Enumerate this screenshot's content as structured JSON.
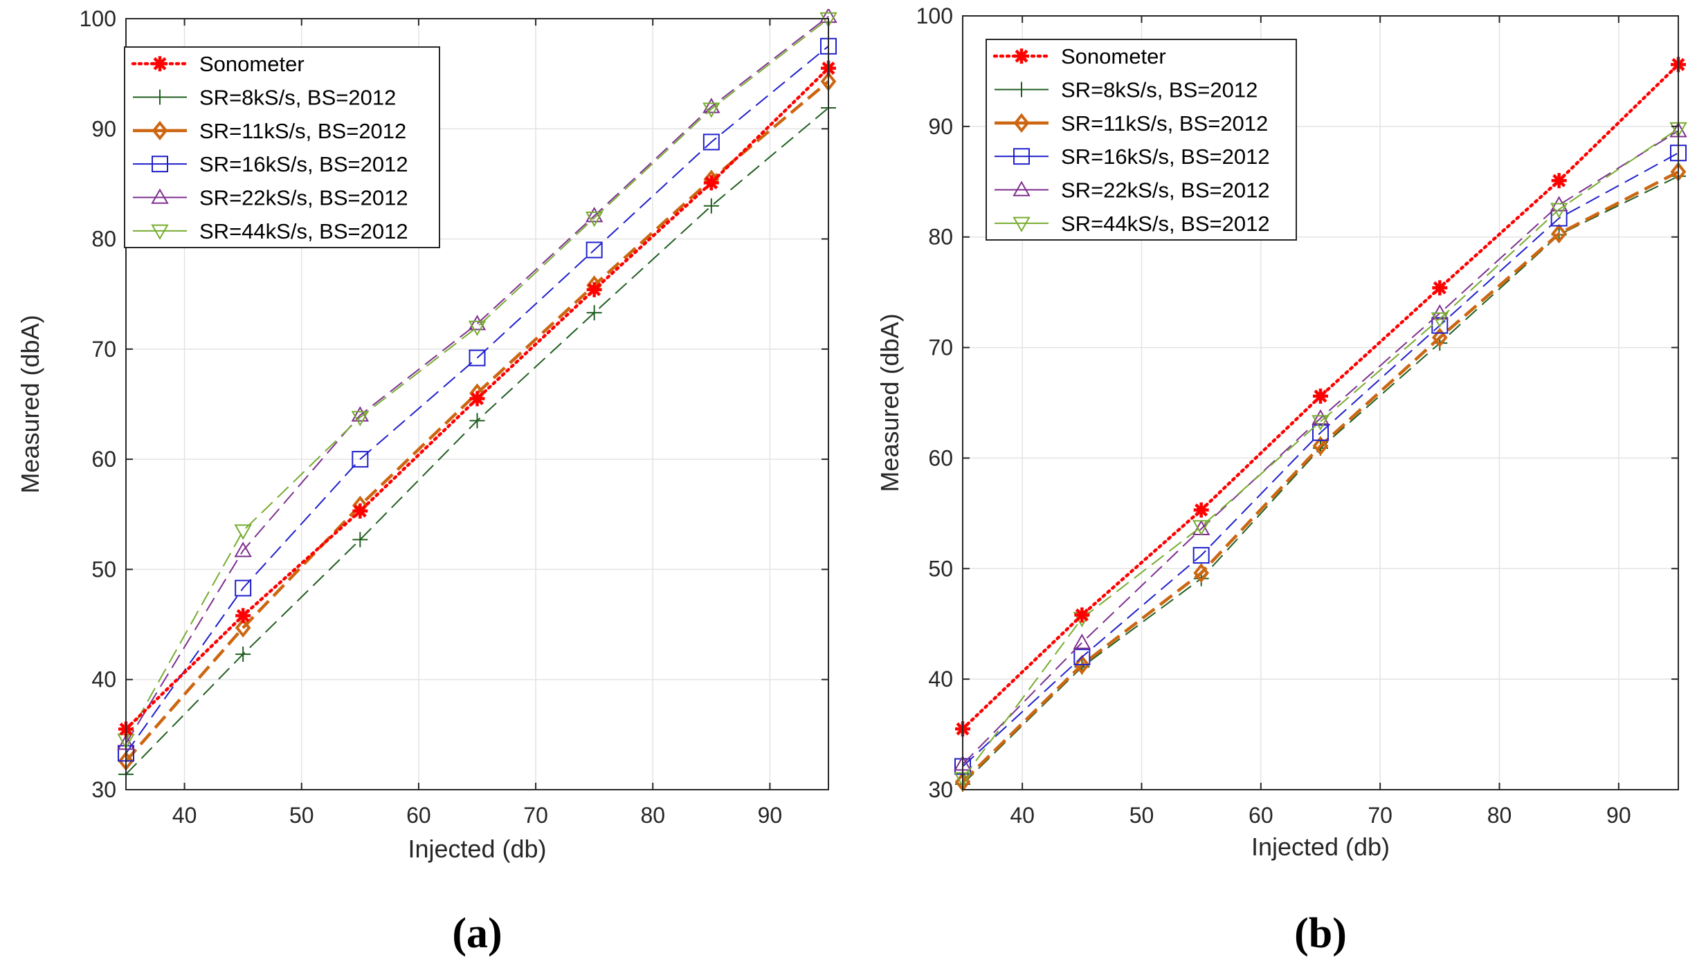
{
  "colors": {
    "sonometer": "#ff0000",
    "sr8": "#1f5e1f",
    "sr11": "#cc6611",
    "sr16": "#1f1fcc",
    "sr22": "#7e2f8e",
    "sr44": "#77ac30",
    "grid": "#e3e3e3",
    "axis": "#262626"
  },
  "chart_data": [
    {
      "type": "line",
      "panel_label": "(a)",
      "xlabel": "Injected (db)",
      "ylabel": "Measured (dbA)",
      "xlim": [
        35,
        95
      ],
      "ylim": [
        30,
        100
      ],
      "xticks": [
        40,
        50,
        60,
        70,
        80,
        90
      ],
      "yticks": [
        30,
        40,
        50,
        60,
        70,
        80,
        90,
        100
      ],
      "grid": true,
      "legend_position": "top-left",
      "x": [
        35,
        45,
        55,
        65,
        75,
        85,
        95
      ],
      "series": [
        {
          "name": "Sonometer",
          "key": "sonometer",
          "marker": "asterisk",
          "dash": "dotted",
          "values": [
            35.5,
            45.8,
            55.3,
            65.5,
            75.4,
            85.1,
            95.5
          ]
        },
        {
          "name": "SR=8kS/s,   BS=2012",
          "key": "sr8",
          "marker": "plus",
          "dash": "dashed",
          "values": [
            31.4,
            42.3,
            52.7,
            63.5,
            73.3,
            83.0,
            91.9
          ]
        },
        {
          "name": "SR=11kS/s, BS=2012",
          "key": "sr11",
          "marker": "diamond",
          "dash": "dashed-bold",
          "values": [
            32.6,
            44.7,
            55.8,
            66.0,
            75.8,
            85.4,
            94.3
          ]
        },
        {
          "name": "SR=16kS/s, BS=2012",
          "key": "sr16",
          "marker": "square",
          "dash": "dashed",
          "values": [
            33.3,
            48.3,
            60.0,
            69.2,
            79.0,
            88.8,
            97.5
          ]
        },
        {
          "name": "SR=22kS/s, BS=2012",
          "key": "sr22",
          "marker": "triangle-up",
          "dash": "dashed",
          "values": [
            34.2,
            51.7,
            64.0,
            72.3,
            82.1,
            92.0,
            100.2
          ]
        },
        {
          "name": "SR=44kS/s, BS=2012",
          "key": "sr44",
          "marker": "triangle-down",
          "dash": "dashed",
          "values": [
            34.5,
            53.5,
            63.8,
            72.0,
            81.9,
            91.8,
            100.0
          ]
        }
      ]
    },
    {
      "type": "line",
      "panel_label": "(b)",
      "xlabel": "Injected (db)",
      "ylabel": "Measured (dbA)",
      "xlim": [
        35,
        95
      ],
      "ylim": [
        30,
        100
      ],
      "xticks": [
        40,
        50,
        60,
        70,
        80,
        90
      ],
      "yticks": [
        30,
        40,
        50,
        60,
        70,
        80,
        90,
        100
      ],
      "grid": true,
      "legend_position": "top-left",
      "x": [
        35,
        45,
        55,
        65,
        75,
        85,
        95
      ],
      "series": [
        {
          "name": "Sonometer",
          "key": "sonometer",
          "marker": "asterisk",
          "dash": "dotted",
          "values": [
            35.5,
            45.8,
            55.3,
            65.6,
            75.4,
            85.1,
            95.6
          ]
        },
        {
          "name": "SR=8kS/s,   BS=2012",
          "key": "sr8",
          "marker": "plus",
          "dash": "dashed",
          "values": [
            30.5,
            41.1,
            49.1,
            60.9,
            70.4,
            80.2,
            85.5
          ]
        },
        {
          "name": "SR=11kS/s, BS=2012",
          "key": "sr11",
          "marker": "diamond",
          "dash": "dashed-bold",
          "values": [
            30.7,
            41.3,
            49.6,
            61.1,
            70.9,
            80.3,
            85.9
          ]
        },
        {
          "name": "SR=16kS/s, BS=2012",
          "key": "sr16",
          "marker": "square",
          "dash": "dashed",
          "values": [
            32.1,
            42.0,
            51.2,
            62.3,
            72.0,
            81.7,
            87.6
          ]
        },
        {
          "name": "SR=22kS/s, BS=2012",
          "key": "sr22",
          "marker": "triangle-up",
          "dash": "dashed",
          "values": [
            32.3,
            43.3,
            53.6,
            63.6,
            73.1,
            82.9,
            89.6
          ]
        },
        {
          "name": "SR=44kS/s, BS=2012",
          "key": "sr44",
          "marker": "triangle-down",
          "dash": "dashed",
          "values": [
            31.0,
            45.5,
            53.8,
            63.3,
            72.6,
            82.5,
            89.8
          ]
        }
      ]
    }
  ]
}
